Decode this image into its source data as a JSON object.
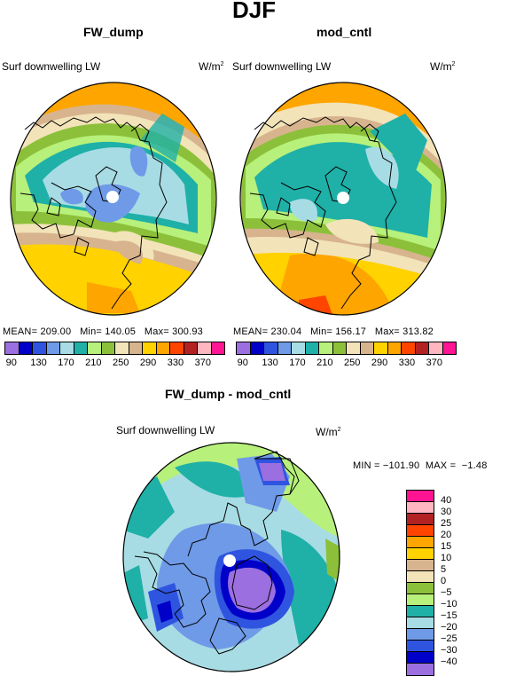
{
  "title": "DJF",
  "panels": {
    "left": {
      "title": "FW_dump",
      "field": "Surf downwelling LW",
      "units": "W/m",
      "units_exp": "2",
      "stats": "MEAN= 209.00   Min= 140.05   Max= 300.93"
    },
    "right": {
      "title": "mod_cntl",
      "field": "Surf downwelling LW",
      "units": "W/m",
      "units_exp": "2",
      "stats": "MEAN= 230.04   Min= 156.17   Max= 313.82"
    },
    "diff": {
      "title": "FW_dump - mod_cntl",
      "field": "Surf downwelling LW",
      "units": "W/m",
      "units_exp": "2",
      "stats": "MIN = −101.90  MAX =  −1.48"
    }
  },
  "colorbar_top": {
    "colors": [
      "#9b6fe0",
      "#0000c8",
      "#2f55e0",
      "#6f9ae8",
      "#a8dce4",
      "#1fb0a8",
      "#b7f07a",
      "#8cc03a",
      "#f2e3b9",
      "#d7b48e",
      "#ffd200",
      "#ffa500",
      "#ff4500",
      "#b22222",
      "#ffb6c1",
      "#ff1493"
    ],
    "labels": [
      "90",
      "130",
      "170",
      "210",
      "250",
      "290",
      "330",
      "370"
    ]
  },
  "colorbar_diff": {
    "colors": [
      "#ff1493",
      "#ffb6c1",
      "#b22222",
      "#ff4500",
      "#ffa500",
      "#ffd200",
      "#d7b48e",
      "#f2e3b9",
      "#8cc03a",
      "#b7f07a",
      "#1fb0a8",
      "#a8dce4",
      "#6f9ae8",
      "#2f55e0",
      "#0000c8",
      "#9b6fe0"
    ],
    "labels": [
      "40",
      "30",
      "25",
      "20",
      "15",
      "10",
      "5",
      "0",
      "−5",
      "−10",
      "−15",
      "−20",
      "−25",
      "−30",
      "−40"
    ]
  }
}
